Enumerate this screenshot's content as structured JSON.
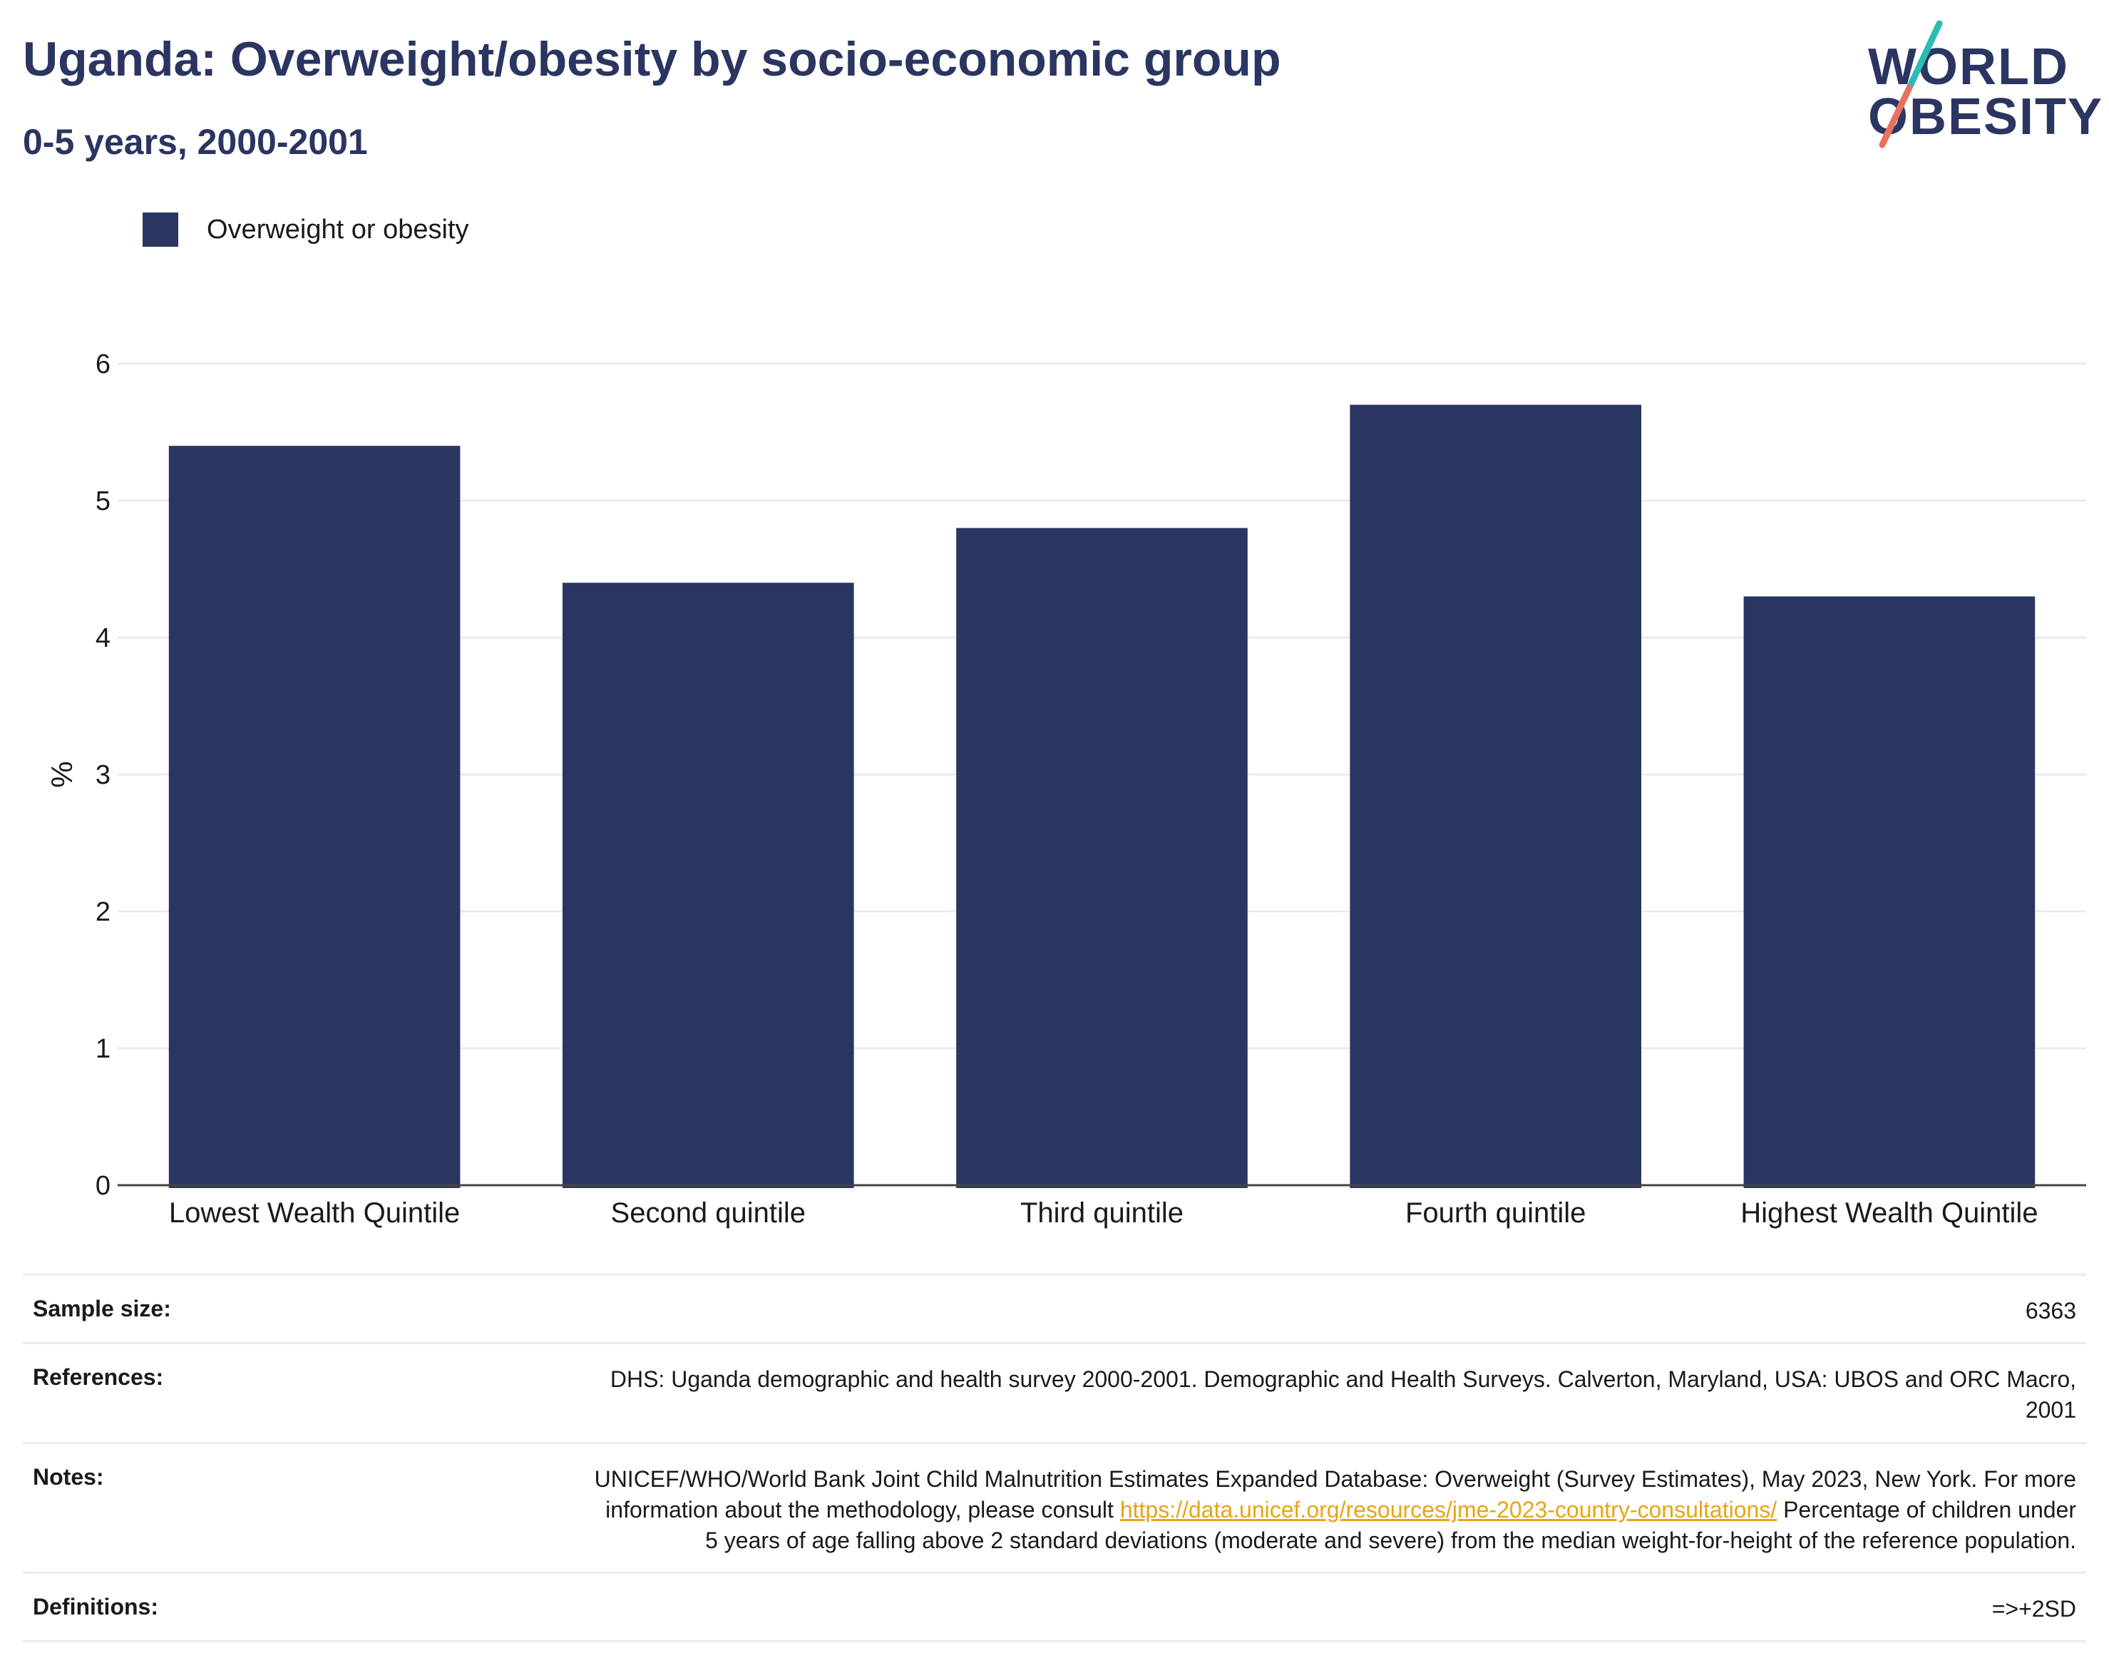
{
  "header": {
    "title": "Uganda: Overweight/obesity by socio-economic group",
    "subtitle": "0-5 years, 2000-2001"
  },
  "logo": {
    "line1": "WORLD",
    "line2": "OBESITY"
  },
  "colors": {
    "bar": "#2b3561",
    "title": "#2b3561",
    "logo_teal": "#2bbcb3",
    "logo_coral": "#e8715f",
    "link": "#e8a317"
  },
  "chart_data": {
    "type": "bar",
    "categories": [
      "Lowest Wealth Quintile",
      "Second quintile",
      "Third quintile",
      "Fourth quintile",
      "Highest Wealth Quintile"
    ],
    "series": [
      {
        "name": "Overweight or obesity",
        "values": [
          5.4,
          4.4,
          4.8,
          5.7,
          4.3
        ]
      }
    ],
    "ylabel": "%",
    "ylim": [
      0,
      6
    ],
    "yticks": [
      "0",
      "1",
      "2",
      "3",
      "4",
      "5",
      "6"
    ],
    "grid": true,
    "legend": "top-left"
  },
  "info": {
    "sample_size_label": "Sample size:",
    "sample_size_value": "6363",
    "references_label": "References:",
    "references_value": "DHS: Uganda demographic and health survey 2000-2001. Demographic and Health Surveys. Calverton, Maryland, USA: UBOS and ORC Macro, 2001",
    "notes_label": "Notes:",
    "notes_text_1": "UNICEF/WHO/World Bank Joint Child Malnutrition Estimates Expanded Database: Overweight (Survey Estimates), May 2023, New York. For more information about the methodology, please consult ",
    "notes_link": "https://data.unicef.org/resources/jme-2023-country-consultations/",
    "notes_text_2": " Percentage of children under 5 years of age falling above 2 standard deviations (moderate and severe) from the median weight-for-height of the reference population.",
    "definitions_label": "Definitions:",
    "definitions_value": "=>+2SD"
  }
}
